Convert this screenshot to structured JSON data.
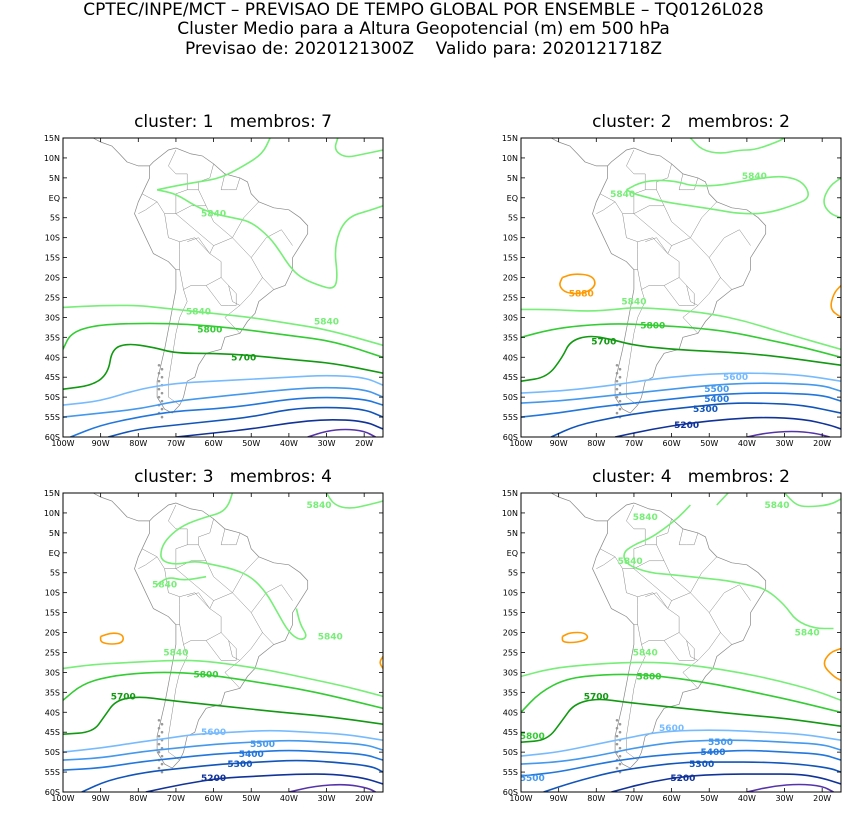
{
  "header": {
    "line1": "CPTEC/INPE/MCT – PREVISAO DE TEMPO GLOBAL POR ENSEMBLE – TQ0126L028",
    "line2": "Cluster Medio para a Altura Geopotencial (m) em 500 hPa",
    "line3": "Previsao de: 2020121300Z    Valido para: 2020121718Z"
  },
  "axes": {
    "lat_labels": [
      "15N",
      "10N",
      "5N",
      "EQ",
      "5S",
      "10S",
      "15S",
      "20S",
      "25S",
      "30S",
      "35S",
      "40S",
      "45S",
      "50S",
      "55S",
      "60S"
    ],
    "lon_labels": [
      "100W",
      "90W",
      "80W",
      "70W",
      "60W",
      "50W",
      "40W",
      "30W",
      "20W"
    ]
  },
  "colors": {
    "c5840": "#77ee77",
    "c5800": "#33cc33",
    "c5700": "#119911",
    "c5600": "#77bbff",
    "c5500": "#4499ee",
    "c5400": "#2277dd",
    "c5300": "#1155bb",
    "c5200": "#113399",
    "c5100": "#5533aa",
    "c5880": "#ff9900",
    "land": "#888888"
  },
  "panels": [
    {
      "title": "cluster: 1   membros: 7",
      "labels": {
        "l5840a": "5840",
        "l5840b": "5840",
        "l5840c": "5840",
        "l5800": "5800",
        "l5700": "5700"
      }
    },
    {
      "title": "cluster: 2   membros: 2",
      "labels": {
        "l5840a": "5840",
        "l5840b": "5840",
        "l5840c": "5840",
        "l5880": "5880",
        "l5800": "5800",
        "l5700": "5700",
        "l5600": "5600",
        "l5500": "5500",
        "l5400": "5400",
        "l5300": "5300",
        "l5200": "5200"
      }
    },
    {
      "title": "cluster: 3   membros: 4",
      "labels": {
        "l5840a": "5840",
        "l5840b": "5840",
        "l5840c": "5840",
        "l5840d": "5840",
        "l5800": "5800",
        "l5700": "5700",
        "l5600": "5600",
        "l5500": "5500",
        "l5400": "5400",
        "l5300": "5300",
        "l5200": "5200"
      }
    },
    {
      "title": "cluster: 4   membros: 2",
      "labels": {
        "l5840a": "5840",
        "l5840b": "5840",
        "l5840c": "5840",
        "l5840d": "5840",
        "l5840e": "5840",
        "l5800": "5800",
        "l5700": "5700",
        "l5800b": "5800",
        "l5600": "5600",
        "l5500": "5500",
        "l5500b": "5500",
        "l5400": "5400",
        "l5300": "5300",
        "l5200": "5200"
      }
    }
  ]
}
